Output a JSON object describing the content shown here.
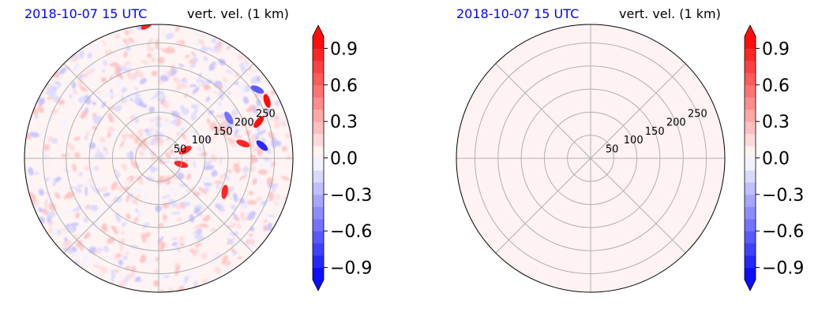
{
  "chart_data": [
    {
      "type": "heatmap",
      "projection": "polar",
      "title_left": "2018-10-07 15 UTC",
      "title_right": "vert. vel. (1 km)",
      "radial_ticks": [
        "50",
        "100",
        "150",
        "200",
        "250"
      ],
      "radial_values": [
        50,
        100,
        150,
        200,
        250
      ],
      "rmax": 290,
      "angular_grid_deg": 45,
      "grid": true,
      "field": "noisy field with strong updrafts and downdrafts",
      "features": [
        {
          "type": "updraft",
          "value": 1.0,
          "range": 230,
          "azimuth_deg": 70
        },
        {
          "type": "updraft",
          "value": 1.0,
          "range": 265,
          "azimuth_deg": 62
        },
        {
          "type": "updraft",
          "value": 0.9,
          "range": 60,
          "azimuth_deg": 73
        },
        {
          "type": "updraft",
          "value": 0.9,
          "range": 50,
          "azimuth_deg": 105
        },
        {
          "type": "updraft",
          "value": 0.9,
          "range": 160,
          "azimuth_deg": 117
        },
        {
          "type": "updraft",
          "value": 0.8,
          "range": 185,
          "azimuth_deg": 80
        },
        {
          "type": "updraft",
          "value": 0.8,
          "range": 290,
          "azimuth_deg": 355
        },
        {
          "type": "downdraft",
          "value": -0.8,
          "range": 225,
          "azimuth_deg": 83
        },
        {
          "type": "downdraft",
          "value": -0.7,
          "range": 260,
          "azimuth_deg": 55
        },
        {
          "type": "downdraft",
          "value": -0.6,
          "range": 175,
          "azimuth_deg": 60
        }
      ],
      "colorbar": {
        "cmap": "bwr",
        "vmin": -1.0,
        "vmax": 1.0,
        "levels": 20,
        "extend": "both",
        "ticks": [
          -0.9,
          -0.6,
          -0.3,
          0.0,
          0.3,
          0.6,
          0.9
        ],
        "tick_labels": [
          "−0.9",
          "−0.6",
          "−0.3",
          "0.0",
          "0.3",
          "0.6",
          "0.9"
        ]
      }
    },
    {
      "type": "heatmap",
      "projection": "polar",
      "title_left": "2018-10-07 15 UTC",
      "title_right": "vert. vel. (1 km)",
      "radial_ticks": [
        "50",
        "100",
        "150",
        "200",
        "250"
      ],
      "radial_values": [
        50,
        100,
        150,
        200,
        250
      ],
      "rmax": 290,
      "angular_grid_deg": 45,
      "grid": true,
      "field": "uniform",
      "uniform_value": 0.02,
      "features": [],
      "colorbar": {
        "cmap": "bwr",
        "vmin": -1.0,
        "vmax": 1.0,
        "levels": 20,
        "extend": "both",
        "ticks": [
          -0.9,
          -0.6,
          -0.3,
          0.0,
          0.3,
          0.6,
          0.9
        ],
        "tick_labels": [
          "−0.9",
          "−0.6",
          "−0.3",
          "0.0",
          "0.3",
          "0.6",
          "0.9"
        ]
      }
    }
  ]
}
